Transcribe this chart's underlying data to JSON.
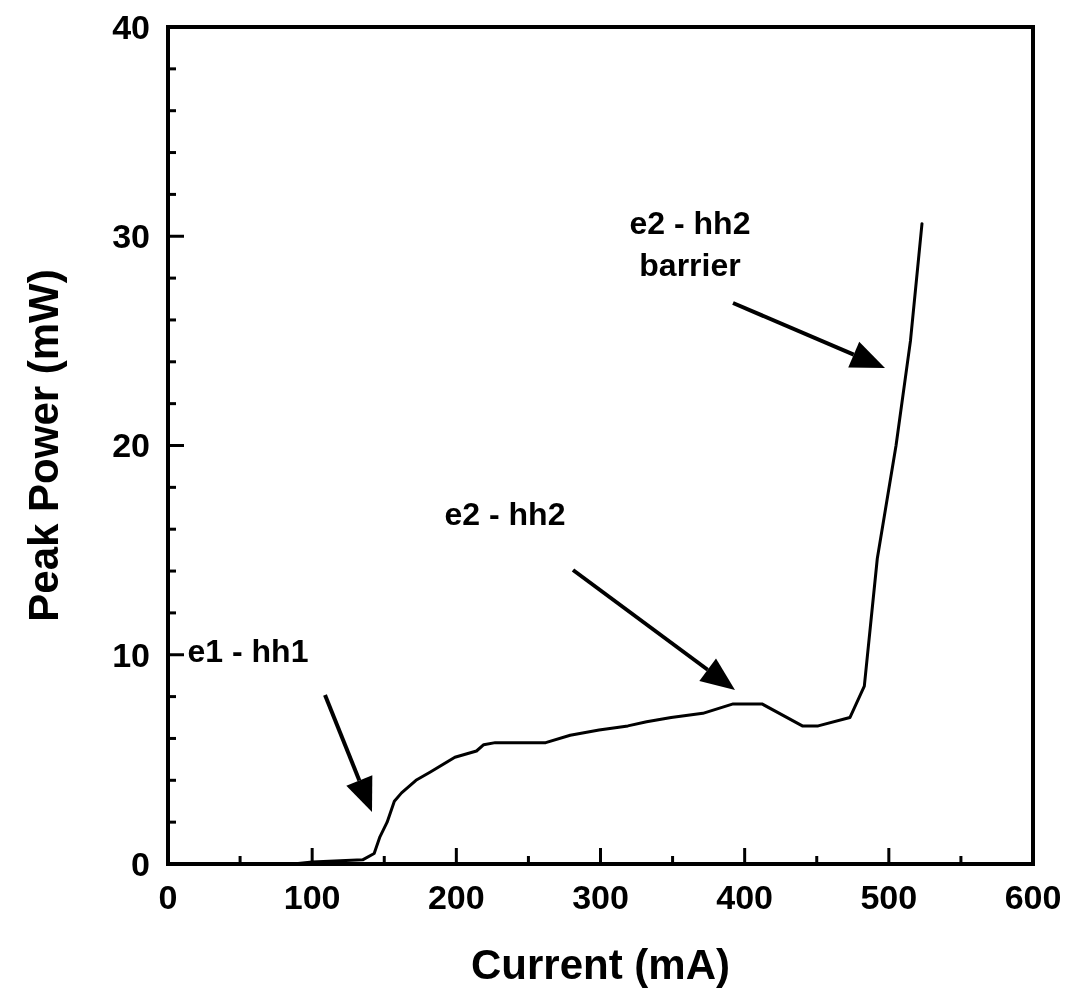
{
  "chart_data": {
    "type": "line",
    "xlabel": "Current (mA)",
    "ylabel": "Peak Power (mW)",
    "x": [
      0,
      87,
      100,
      135,
      143,
      147,
      152,
      157,
      162,
      172,
      182,
      199,
      214,
      219,
      227,
      262,
      279,
      299,
      319,
      332,
      349,
      371,
      392,
      412,
      440,
      451,
      473,
      483,
      492,
      505,
      515,
      523
    ],
    "series": [
      {
        "color": "#000000",
        "values": [
          0,
          0,
          0.1,
          0.2,
          0.5,
          1.3,
          2.0,
          3.0,
          3.4,
          4.0,
          4.4,
          5.1,
          5.4,
          5.7,
          5.8,
          5.8,
          6.15,
          6.4,
          6.6,
          6.8,
          7.0,
          7.2,
          7.65,
          7.65,
          6.6,
          6.6,
          7.0,
          8.5,
          14.6,
          20.0,
          25.0,
          30.6
        ]
      }
    ],
    "xlim": [
      0,
      600
    ],
    "ylim": [
      0,
      40
    ],
    "xticks": [
      0,
      {
        "value": 50,
        "label": null
      },
      100,
      {
        "value": 150,
        "label": null
      },
      200,
      {
        "value": 250,
        "label": null
      },
      300,
      {
        "value": 350,
        "label": null
      },
      400,
      {
        "value": 450,
        "label": null
      },
      500,
      {
        "value": 550,
        "label": null
      },
      600
    ],
    "yticks": [
      0,
      {
        "value": 2,
        "label": null
      },
      {
        "value": 4,
        "label": null
      },
      {
        "value": 6,
        "label": null
      },
      {
        "value": 8,
        "label": null
      },
      10,
      {
        "value": 12,
        "label": null
      },
      {
        "value": 14,
        "label": null
      },
      {
        "value": 16,
        "label": null
      },
      {
        "value": 18,
        "label": null
      },
      20,
      {
        "value": 22,
        "label": null
      },
      {
        "value": 24,
        "label": null
      },
      {
        "value": 26,
        "label": null
      },
      {
        "value": 28,
        "label": null
      },
      30,
      {
        "value": 32,
        "label": null
      },
      {
        "value": 34,
        "label": null
      },
      {
        "value": 36,
        "label": null
      },
      {
        "value": 38,
        "label": null
      },
      40
    ],
    "grid": false,
    "marker": "none",
    "line_style": "solid",
    "annotations": [
      "e1 - hh1",
      "e2 - hh2",
      "e2 - hh2\nbarrier"
    ]
  }
}
